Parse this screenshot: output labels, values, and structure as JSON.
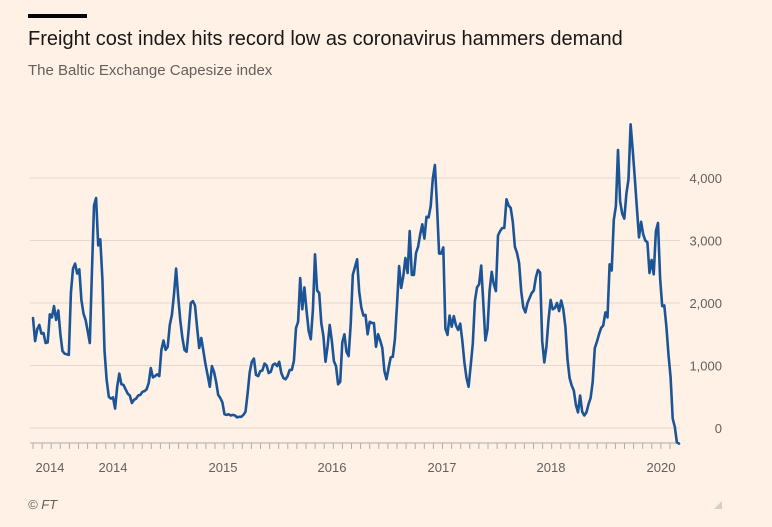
{
  "header": {
    "title": "Freight cost index hits record low as coronavirus hammers demand",
    "subtitle": "The Baltic Exchange Capesize index"
  },
  "footer": {
    "source": "© FT"
  },
  "colors": {
    "line": "#1b5597",
    "grid": "#e3d9cf",
    "axis": "#b5ada6",
    "background": "#fff1e5"
  },
  "chart_data": {
    "type": "line",
    "title": "Freight cost index hits record low as coronavirus hammers demand",
    "subtitle": "The Baltic Exchange Capesize index",
    "xlabel": "",
    "ylabel": "",
    "x_tick_labels": [
      "2014",
      "2014",
      "2015",
      "2016",
      "2017",
      "2018",
      "2020"
    ],
    "y_ticks": [
      0,
      1000,
      2000,
      3000,
      4000
    ],
    "y_tick_labels": [
      "0",
      "1,000",
      "2,000",
      "3,000",
      "4,000"
    ],
    "ylim": [
      -270,
      4850
    ],
    "grid": true,
    "legend": "none",
    "series": [
      {
        "values": [
          1760,
          1390,
          1580,
          1650,
          1510,
          1520,
          1360,
          1370,
          1820,
          1770,
          1950,
          1730,
          1880,
          1500,
          1230,
          1190,
          1180,
          1170,
          2160,
          2550,
          2630,
          2470,
          2540,
          2050,
          1830,
          1730,
          1550,
          1360,
          2480,
          3560,
          3680,
          2920,
          3020,
          2380,
          1240,
          780,
          500,
          470,
          490,
          310,
          660,
          870,
          700,
          690,
          620,
          550,
          520,
          400,
          450,
          470,
          520,
          530,
          580,
          590,
          620,
          720,
          960,
          810,
          830,
          860,
          830,
          1250,
          1400,
          1250,
          1300,
          1650,
          1810,
          2140,
          2550,
          2100,
          1720,
          1440,
          1250,
          1220,
          1580,
          2000,
          2030,
          1960,
          1610,
          1280,
          1440,
          1230,
          1020,
          840,
          660,
          990,
          900,
          740,
          530,
          480,
          410,
          220,
          210,
          220,
          200,
          210,
          200,
          170,
          180,
          180,
          210,
          260,
          550,
          890,
          1060,
          1110,
          850,
          830,
          910,
          920,
          1030,
          1000,
          880,
          900,
          1010,
          1030,
          990,
          1060,
          880,
          800,
          780,
          830,
          930,
          930,
          1070,
          1600,
          1700,
          2400,
          1900,
          2250,
          1870,
          1550,
          1420,
          1890,
          2780,
          2200,
          2160,
          1680,
          1470,
          1060,
          1310,
          1650,
          1400,
          1070,
          990,
          700,
          740,
          1370,
          1500,
          1220,
          1150,
          1660,
          2450,
          2570,
          2700,
          2180,
          1930,
          1800,
          1810,
          1500,
          1700,
          1680,
          1680,
          1300,
          1500,
          1400,
          1280,
          910,
          780,
          960,
          1130,
          1140,
          1420,
          1970,
          2590,
          2240,
          2430,
          2720,
          2480,
          3150,
          2450,
          2450,
          2800,
          2900,
          3100,
          3260,
          3030,
          3380,
          3370,
          3550,
          3990,
          4210,
          3560,
          2790,
          2790,
          2890,
          1590,
          1490,
          1800,
          1620,
          1790,
          1640,
          1570,
          1670,
          1400,
          1050,
          800,
          660,
          1000,
          1350,
          2030,
          2250,
          2300,
          2600,
          2000,
          1400,
          1580,
          2200,
          2500,
          2300,
          2190,
          3080,
          3150,
          3200,
          3200,
          3660,
          3560,
          3520,
          3300,
          2900,
          2800,
          2640,
          2190,
          1930,
          1850,
          2000,
          2080,
          2160,
          2200,
          2410,
          2530,
          2490,
          1390,
          1050,
          1300,
          1730,
          2050,
          1900,
          1920,
          2000,
          1870,
          2040,
          1900,
          1620,
          1100,
          800,
          680,
          600,
          370,
          250,
          520,
          260,
          200,
          250,
          380,
          480,
          740,
          1280,
          1380,
          1500,
          1600,
          1640,
          1850,
          1770,
          2620,
          2520,
          3330,
          3550,
          4450,
          3630,
          3430,
          3350,
          3750,
          3980,
          4860,
          4450,
          4000,
          3520,
          3050,
          3300,
          3100,
          3000,
          2970,
          2480,
          2690,
          2460,
          3150,
          3280,
          2400,
          1950,
          1960,
          1620,
          1170,
          810,
          150,
          20,
          -230,
          -250
        ]
      }
    ]
  }
}
